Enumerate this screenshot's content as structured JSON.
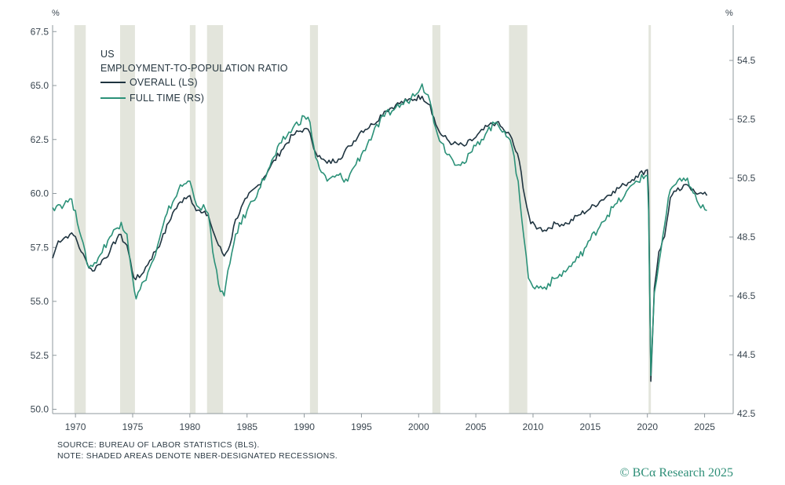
{
  "chart_data": {
    "type": "line",
    "title": "US",
    "subtitle": "EMPLOYMENT-TO-POPULATION RATIO",
    "left_axis_unit": "%",
    "right_axis_unit": "%",
    "x_ticks": [
      "1970",
      "1975",
      "1980",
      "1985",
      "1990",
      "1995",
      "2000",
      "2005",
      "2010",
      "2015",
      "2020",
      "2025"
    ],
    "xlim": [
      1968,
      2027.5
    ],
    "y_left": {
      "lim": [
        49.8,
        67.8
      ],
      "ticks": [
        "50.0",
        "52.5",
        "55.0",
        "57.5",
        "60.0",
        "62.5",
        "65.0",
        "67.5"
      ]
    },
    "y_right": {
      "lim": [
        42.5,
        55.7
      ],
      "ticks": [
        "42.5",
        "44.5",
        "46.5",
        "48.5",
        "50.5",
        "52.5",
        "54.5"
      ]
    },
    "recessions": [
      [
        1969.9,
        1970.9
      ],
      [
        1973.9,
        1975.2
      ],
      [
        1980.0,
        1980.5
      ],
      [
        1981.5,
        1982.9
      ],
      [
        1990.5,
        1991.2
      ],
      [
        2001.2,
        2001.9
      ],
      [
        2007.9,
        2009.5
      ],
      [
        2020.1,
        2020.3
      ]
    ],
    "grid": false,
    "legend_position": "top-left",
    "series": [
      {
        "name": "OVERALL (LS)",
        "axis": "left",
        "color": "#1f3440",
        "points": [
          [
            1968,
            57.0
          ],
          [
            1968.5,
            57.8
          ],
          [
            1969.5,
            58.1
          ],
          [
            1970.0,
            58.0
          ],
          [
            1970.5,
            57.3
          ],
          [
            1971.0,
            56.8
          ],
          [
            1971.5,
            56.4
          ],
          [
            1972.0,
            56.7
          ],
          [
            1973.0,
            57.3
          ],
          [
            1973.8,
            58.1
          ],
          [
            1974.5,
            57.6
          ],
          [
            1975.1,
            56.1
          ],
          [
            1975.6,
            56.1
          ],
          [
            1976.5,
            56.9
          ],
          [
            1977.5,
            57.8
          ],
          [
            1978.5,
            59.1
          ],
          [
            1979.5,
            59.8
          ],
          [
            1980.0,
            59.9
          ],
          [
            1980.4,
            59.4
          ],
          [
            1981.0,
            59.1
          ],
          [
            1981.6,
            59.0
          ],
          [
            1982.0,
            58.3
          ],
          [
            1982.5,
            57.6
          ],
          [
            1983.0,
            57.1
          ],
          [
            1983.5,
            57.6
          ],
          [
            1984.0,
            58.8
          ],
          [
            1985.0,
            59.8
          ],
          [
            1986.0,
            60.4
          ],
          [
            1987.0,
            61.2
          ],
          [
            1988.0,
            62.0
          ],
          [
            1989.0,
            62.7
          ],
          [
            1990.0,
            63.0
          ],
          [
            1990.5,
            62.8
          ],
          [
            1991.0,
            61.9
          ],
          [
            1991.5,
            61.6
          ],
          [
            1992.0,
            61.4
          ],
          [
            1993.0,
            61.6
          ],
          [
            1994.0,
            62.2
          ],
          [
            1995.0,
            62.9
          ],
          [
            1996.0,
            63.2
          ],
          [
            1997.0,
            63.8
          ],
          [
            1998.0,
            64.1
          ],
          [
            1999.0,
            64.3
          ],
          [
            2000.3,
            64.5
          ],
          [
            2001.0,
            64.1
          ],
          [
            2001.5,
            63.2
          ],
          [
            2002.0,
            62.7
          ],
          [
            2003.0,
            62.3
          ],
          [
            2004.0,
            62.2
          ],
          [
            2005.0,
            62.6
          ],
          [
            2006.0,
            63.1
          ],
          [
            2006.8,
            63.3
          ],
          [
            2007.5,
            62.9
          ],
          [
            2008.0,
            62.7
          ],
          [
            2008.8,
            61.5
          ],
          [
            2009.3,
            59.8
          ],
          [
            2009.8,
            58.6
          ],
          [
            2010.5,
            58.4
          ],
          [
            2011.0,
            58.3
          ],
          [
            2012.0,
            58.6
          ],
          [
            2013.0,
            58.6
          ],
          [
            2014.0,
            59.0
          ],
          [
            2015.0,
            59.3
          ],
          [
            2016.0,
            59.7
          ],
          [
            2017.0,
            60.1
          ],
          [
            2018.0,
            60.4
          ],
          [
            2019.0,
            60.8
          ],
          [
            2020.0,
            61.1
          ],
          [
            2020.1,
            60.0
          ],
          [
            2020.3,
            51.3
          ],
          [
            2020.6,
            55.6
          ],
          [
            2021.0,
            57.3
          ],
          [
            2021.5,
            58.0
          ],
          [
            2022.0,
            59.8
          ],
          [
            2022.5,
            60.1
          ],
          [
            2023.0,
            60.2
          ],
          [
            2023.5,
            60.4
          ],
          [
            2024.0,
            60.2
          ],
          [
            2024.5,
            60.0
          ],
          [
            2025.2,
            59.9
          ]
        ]
      },
      {
        "name": "FULL TIME (RS)",
        "axis": "right",
        "color": "#2b9178",
        "points": [
          [
            1968,
            49.5
          ],
          [
            1968.5,
            49.6
          ],
          [
            1969.0,
            49.6
          ],
          [
            1969.5,
            49.8
          ],
          [
            1970.0,
            49.4
          ],
          [
            1970.5,
            48.5
          ],
          [
            1971.0,
            47.6
          ],
          [
            1971.5,
            47.5
          ],
          [
            1972.0,
            47.8
          ],
          [
            1973.0,
            48.5
          ],
          [
            1974.0,
            49.0
          ],
          [
            1974.5,
            48.6
          ],
          [
            1975.0,
            47.1
          ],
          [
            1975.3,
            46.4
          ],
          [
            1976.0,
            47.0
          ],
          [
            1977.0,
            47.9
          ],
          [
            1978.0,
            49.3
          ],
          [
            1979.0,
            50.1
          ],
          [
            1979.5,
            50.3
          ],
          [
            1980.0,
            50.4
          ],
          [
            1980.4,
            49.8
          ],
          [
            1980.8,
            49.5
          ],
          [
            1981.2,
            49.6
          ],
          [
            1981.6,
            49.3
          ],
          [
            1982.0,
            48.0
          ],
          [
            1982.5,
            46.9
          ],
          [
            1983.0,
            46.5
          ],
          [
            1983.5,
            47.6
          ],
          [
            1984.0,
            48.6
          ],
          [
            1985.0,
            49.4
          ],
          [
            1986.0,
            50.1
          ],
          [
            1987.0,
            50.9
          ],
          [
            1988.0,
            51.7
          ],
          [
            1989.0,
            52.2
          ],
          [
            1990.0,
            52.6
          ],
          [
            1990.5,
            52.4
          ],
          [
            1991.0,
            51.2
          ],
          [
            1991.5,
            50.7
          ],
          [
            1992.0,
            50.4
          ],
          [
            1993.0,
            50.6
          ],
          [
            1993.8,
            50.4
          ],
          [
            1994.2,
            50.8
          ],
          [
            1995.0,
            51.3
          ],
          [
            1996.0,
            52.0
          ],
          [
            1997.0,
            52.6
          ],
          [
            1998.0,
            52.9
          ],
          [
            1999.0,
            53.1
          ],
          [
            2000.3,
            53.7
          ],
          [
            2001.0,
            53.1
          ],
          [
            2001.5,
            52.2
          ],
          [
            2002.0,
            51.7
          ],
          [
            2003.0,
            51.1
          ],
          [
            2004.0,
            51.0
          ],
          [
            2005.0,
            51.6
          ],
          [
            2006.0,
            52.1
          ],
          [
            2006.8,
            52.4
          ],
          [
            2007.5,
            52.1
          ],
          [
            2008.0,
            51.8
          ],
          [
            2008.7,
            50.4
          ],
          [
            2009.2,
            48.5
          ],
          [
            2009.6,
            47.1
          ],
          [
            2010.0,
            46.8
          ],
          [
            2011.0,
            46.8
          ],
          [
            2012.0,
            47.1
          ],
          [
            2013.0,
            47.4
          ],
          [
            2014.0,
            47.8
          ],
          [
            2015.0,
            48.4
          ],
          [
            2016.0,
            49.0
          ],
          [
            2017.0,
            49.5
          ],
          [
            2018.0,
            49.9
          ],
          [
            2019.0,
            50.4
          ],
          [
            2020.0,
            50.6
          ],
          [
            2020.1,
            49.4
          ],
          [
            2020.3,
            43.8
          ],
          [
            2020.6,
            46.6
          ],
          [
            2021.0,
            47.6
          ],
          [
            2021.5,
            48.9
          ],
          [
            2022.0,
            50.1
          ],
          [
            2022.5,
            50.3
          ],
          [
            2023.0,
            50.4
          ],
          [
            2023.5,
            50.5
          ],
          [
            2024.0,
            50.0
          ],
          [
            2024.5,
            49.6
          ],
          [
            2025.2,
            49.4
          ]
        ]
      }
    ]
  },
  "footer": {
    "source": "SOURCE: BUREAU OF LABOR STATISTICS (BLS).",
    "note": "NOTE: SHADED AREAS DENOTE NBER-DESIGNATED RECESSIONS.",
    "credit": "© BCα Research 2025"
  }
}
